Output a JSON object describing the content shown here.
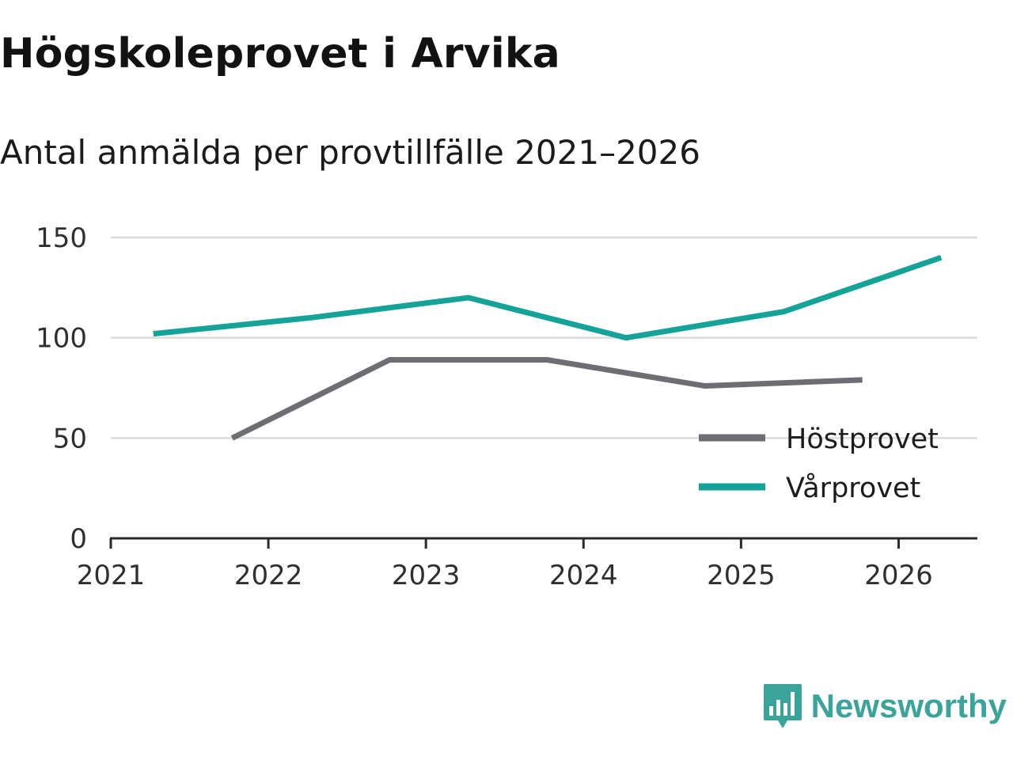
{
  "header": {
    "title": "Högskoleprovet i Arvika",
    "subtitle": "Antal anmälda per provtillfälle 2021–2026"
  },
  "brand": {
    "name": "Newsworthy",
    "color": "#3aa39a"
  },
  "chart_data": {
    "type": "line",
    "title": "Högskoleprovet i Arvika",
    "subtitle": "Antal anmälda per provtillfälle 2021–2026",
    "xlabel": "",
    "ylabel": "",
    "xlim": [
      2021,
      2026.5
    ],
    "ylim": [
      0,
      150
    ],
    "x_ticks": [
      "2021",
      "2022",
      "2023",
      "2024",
      "2025",
      "2026"
    ],
    "y_ticks": [
      0,
      50,
      100,
      150
    ],
    "grid": true,
    "legend_position": "bottom-right",
    "series": [
      {
        "name": "Höstprovet",
        "color": "#6e6d74",
        "x": [
          2021.77,
          2022.77,
          2023.77,
          2024.77,
          2025.77
        ],
        "values": [
          50,
          89,
          89,
          76,
          79
        ]
      },
      {
        "name": "Vårprovet",
        "color": "#15a399",
        "x": [
          2021.27,
          2022.27,
          2023.27,
          2024.27,
          2025.27,
          2026.27
        ],
        "values": [
          102,
          110,
          120,
          100,
          113,
          140
        ]
      }
    ]
  }
}
